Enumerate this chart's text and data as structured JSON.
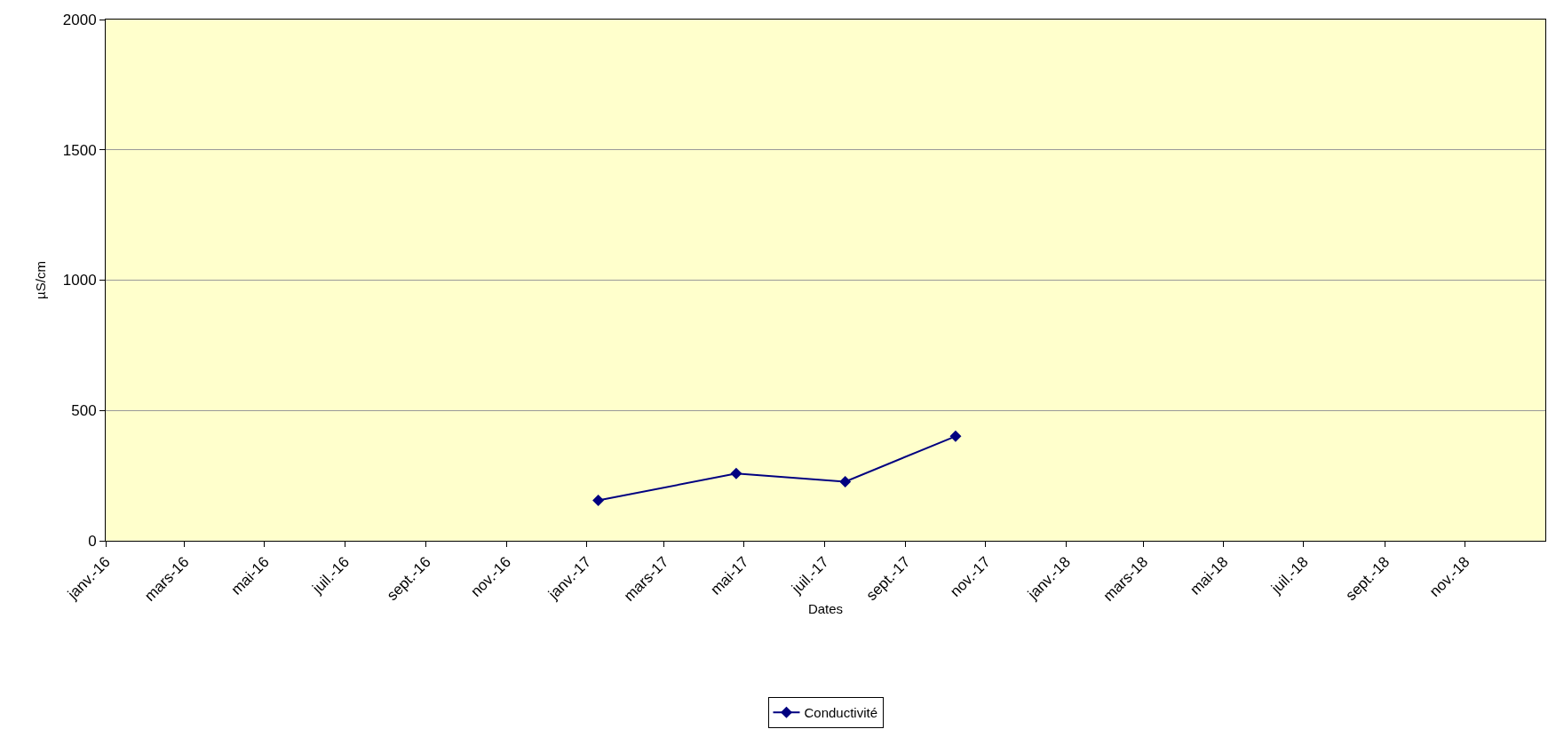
{
  "chart_data": {
    "type": "line",
    "xlabel": "Dates",
    "ylabel": "µS/cm",
    "x": [
      "2017-01-10",
      "2017-04-25",
      "2017-07-17",
      "2017-10-09"
    ],
    "series": [
      {
        "name": "Conductivité",
        "color": "#000080",
        "values": [
          155,
          258,
          227,
          401
        ]
      }
    ],
    "xlim": [
      "2016-01-01",
      "2019-01-01"
    ],
    "xticks": [
      {
        "value": "2016-01-01",
        "label": "janv.-16"
      },
      {
        "value": "2016-03-01",
        "label": "mars-16"
      },
      {
        "value": "2016-05-01",
        "label": "mai-16"
      },
      {
        "value": "2016-07-01",
        "label": "juil.-16"
      },
      {
        "value": "2016-09-01",
        "label": "sept.-16"
      },
      {
        "value": "2016-11-01",
        "label": "nov.-16"
      },
      {
        "value": "2017-01-01",
        "label": "janv.-17"
      },
      {
        "value": "2017-03-01",
        "label": "mars-17"
      },
      {
        "value": "2017-05-01",
        "label": "mai-17"
      },
      {
        "value": "2017-07-01",
        "label": "juil.-17"
      },
      {
        "value": "2017-09-01",
        "label": "sept.-17"
      },
      {
        "value": "2017-11-01",
        "label": "nov.-17"
      },
      {
        "value": "2018-01-01",
        "label": "janv.-18"
      },
      {
        "value": "2018-03-01",
        "label": "mars-18"
      },
      {
        "value": "2018-05-01",
        "label": "mai-18"
      },
      {
        "value": "2018-07-01",
        "label": "juil.-18"
      },
      {
        "value": "2018-09-01",
        "label": "sept.-18"
      },
      {
        "value": "2018-11-01",
        "label": "nov.-18"
      }
    ],
    "ylim": [
      0,
      2000
    ],
    "yticks": [
      0,
      500,
      1000,
      1500,
      2000
    ],
    "grid": "y",
    "legend": "bottom",
    "marker": "diamond",
    "line_style": "solid"
  }
}
